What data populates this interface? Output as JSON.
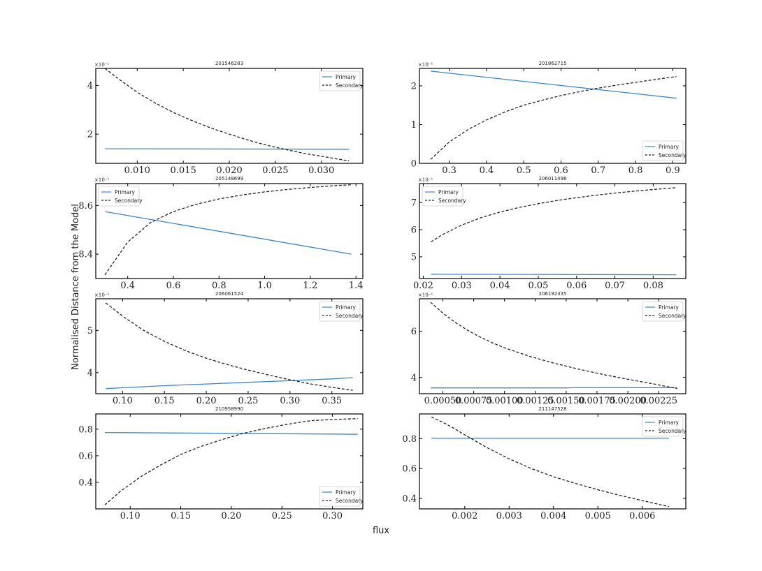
{
  "figure": {
    "xlabel": "flux",
    "ylabel": "Normalised Distance from the Model"
  },
  "colors": {
    "primary": "#3b87c4",
    "secondary": "#222222",
    "axes": "#000000"
  },
  "chart_data": [
    {
      "type": "line",
      "title": "201546283",
      "exponent": "×10⁻¹",
      "xlim": [
        0.0055,
        0.0345
      ],
      "ylim": [
        0.8,
        4.7
      ],
      "xticks": [
        0.01,
        0.015,
        0.02,
        0.025,
        0.03
      ],
      "xtick_labels": [
        "0.010",
        "0.015",
        "0.020",
        "0.025",
        "0.030"
      ],
      "yticks": [
        2,
        4
      ],
      "ytick_labels": [
        "2",
        "4"
      ],
      "legend": "top-right",
      "series": [
        {
          "name": "Primary",
          "style": "solid",
          "x": [
            0.0065,
            0.033
          ],
          "y": [
            1.4,
            1.38
          ]
        },
        {
          "name": "Secondary",
          "style": "dashed",
          "x": [
            0.0065,
            0.008,
            0.01,
            0.012,
            0.014,
            0.016,
            0.018,
            0.02,
            0.022,
            0.024,
            0.026,
            0.028,
            0.03,
            0.033
          ],
          "y": [
            4.7,
            4.26,
            3.72,
            3.27,
            2.88,
            2.55,
            2.25,
            2.0,
            1.76,
            1.55,
            1.38,
            1.22,
            1.09,
            0.9
          ]
        }
      ]
    },
    {
      "type": "line",
      "title": "201862715",
      "exponent": "×10⁻¹",
      "xlim": [
        0.22,
        0.935
      ],
      "ylim": [
        0,
        2.45
      ],
      "xticks": [
        0.3,
        0.4,
        0.5,
        0.6,
        0.7,
        0.8,
        0.9
      ],
      "xtick_labels": [
        "0.3",
        "0.4",
        "0.5",
        "0.6",
        "0.7",
        "0.8",
        "0.9"
      ],
      "yticks": [
        0,
        1,
        2
      ],
      "ytick_labels": [
        "0",
        "1",
        "2"
      ],
      "legend": "bottom-right",
      "series": [
        {
          "name": "Primary",
          "style": "solid",
          "x": [
            0.25,
            0.91
          ],
          "y": [
            2.38,
            1.68
          ]
        },
        {
          "name": "Secondary",
          "style": "dashed",
          "x": [
            0.25,
            0.3,
            0.35,
            0.4,
            0.45,
            0.5,
            0.55,
            0.6,
            0.65,
            0.7,
            0.75,
            0.8,
            0.85,
            0.91
          ],
          "y": [
            0.1,
            0.55,
            0.87,
            1.12,
            1.33,
            1.5,
            1.63,
            1.75,
            1.85,
            1.94,
            2.02,
            2.09,
            2.16,
            2.24
          ]
        }
      ]
    },
    {
      "type": "line",
      "title": "205148699",
      "exponent": "×10⁻¹",
      "xlim": [
        0.26,
        1.43
      ],
      "ylim": [
        8.3,
        8.69
      ],
      "xticks": [
        0.4,
        0.6,
        0.8,
        1.0,
        1.2,
        1.4
      ],
      "xtick_labels": [
        "0.4",
        "0.6",
        "0.8",
        "1.0",
        "1.2",
        "1.4"
      ],
      "yticks": [
        8.4,
        8.6
      ],
      "ytick_labels": [
        "8.4",
        "8.6"
      ],
      "legend": "top-left",
      "series": [
        {
          "name": "Primary",
          "style": "solid",
          "x": [
            0.3,
            1.38
          ],
          "y": [
            8.575,
            8.4
          ]
        },
        {
          "name": "Secondary",
          "style": "dashed",
          "x": [
            0.3,
            0.4,
            0.5,
            0.6,
            0.7,
            0.8,
            0.9,
            1.0,
            1.1,
            1.2,
            1.3,
            1.38
          ],
          "y": [
            8.315,
            8.45,
            8.53,
            8.575,
            8.605,
            8.627,
            8.643,
            8.656,
            8.666,
            8.674,
            8.681,
            8.685
          ]
        }
      ]
    },
    {
      "type": "line",
      "title": "206011496",
      "exponent": "×10⁻¹",
      "xlim": [
        0.019,
        0.0885
      ],
      "ylim": [
        4.2,
        7.7
      ],
      "xticks": [
        0.02,
        0.03,
        0.04,
        0.05,
        0.06,
        0.07,
        0.08
      ],
      "xtick_labels": [
        "0.02",
        "0.03",
        "0.04",
        "0.05",
        "0.06",
        "0.07",
        "0.08"
      ],
      "yticks": [
        5,
        6,
        7
      ],
      "ytick_labels": [
        "5",
        "6",
        "7"
      ],
      "legend": "top-left",
      "series": [
        {
          "name": "Primary",
          "style": "solid",
          "x": [
            0.022,
            0.086
          ],
          "y": [
            4.36,
            4.34
          ]
        },
        {
          "name": "Secondary",
          "style": "dashed",
          "x": [
            0.022,
            0.025,
            0.03,
            0.035,
            0.04,
            0.045,
            0.05,
            0.055,
            0.06,
            0.065,
            0.07,
            0.075,
            0.08,
            0.086
          ],
          "y": [
            5.55,
            5.82,
            6.17,
            6.44,
            6.65,
            6.82,
            6.96,
            7.08,
            7.18,
            7.27,
            7.35,
            7.42,
            7.48,
            7.55
          ]
        }
      ]
    },
    {
      "type": "line",
      "title": "206061524",
      "exponent": "×10⁻¹",
      "xlim": [
        0.068,
        0.387
      ],
      "ylim": [
        3.5,
        5.75
      ],
      "xticks": [
        0.1,
        0.15,
        0.2,
        0.25,
        0.3,
        0.35
      ],
      "xtick_labels": [
        "0.10",
        "0.15",
        "0.20",
        "0.25",
        "0.30",
        "0.35"
      ],
      "yticks": [
        4,
        5
      ],
      "ytick_labels": [
        "4",
        "5"
      ],
      "legend": "top-right",
      "series": [
        {
          "name": "Primary",
          "style": "solid",
          "x": [
            0.08,
            0.1,
            0.15,
            0.2,
            0.25,
            0.3,
            0.35,
            0.375
          ],
          "y": [
            3.62,
            3.64,
            3.69,
            3.73,
            3.77,
            3.81,
            3.85,
            3.88
          ]
        },
        {
          "name": "Secondary",
          "style": "dashed",
          "x": [
            0.08,
            0.1,
            0.125,
            0.15,
            0.175,
            0.2,
            0.225,
            0.25,
            0.275,
            0.3,
            0.325,
            0.35,
            0.375
          ],
          "y": [
            5.65,
            5.34,
            5.0,
            4.74,
            4.52,
            4.34,
            4.19,
            4.06,
            3.94,
            3.83,
            3.73,
            3.65,
            3.58
          ]
        }
      ]
    },
    {
      "type": "line",
      "title": "206192335",
      "exponent": "×10⁻¹",
      "xlim": [
        0.00031,
        0.00247
      ],
      "ylim": [
        3.3,
        7.4
      ],
      "xticks": [
        0.0005,
        0.00075,
        0.001,
        0.00125,
        0.0015,
        0.00175,
        0.002,
        0.00225
      ],
      "xtick_labels": [
        "0.00050",
        "0.00075",
        "0.00100",
        "0.00125",
        "0.00150",
        "0.00175",
        "0.00200",
        "0.00225"
      ],
      "yticks": [
        4,
        6
      ],
      "ytick_labels": [
        "4",
        "6"
      ],
      "legend": "top-right",
      "series": [
        {
          "name": "Primary",
          "style": "solid",
          "x": [
            0.0004,
            0.0015,
            0.00155,
            0.0024
          ],
          "y": [
            3.55,
            3.55,
            3.56,
            3.56
          ]
        },
        {
          "name": "Secondary",
          "style": "dashed",
          "x": [
            0.0004,
            0.0005,
            0.0006,
            0.0007,
            0.0008,
            0.0009,
            0.001,
            0.0012,
            0.0014,
            0.0016,
            0.0018,
            0.002,
            0.0022,
            0.0024
          ],
          "y": [
            7.25,
            6.78,
            6.38,
            6.04,
            5.75,
            5.5,
            5.28,
            4.92,
            4.62,
            4.36,
            4.13,
            3.92,
            3.73,
            3.52
          ]
        }
      ]
    },
    {
      "type": "line",
      "title": "210958990",
      "exponent": "",
      "xlim": [
        0.066,
        0.33
      ],
      "ylim": [
        0.2,
        0.915
      ],
      "xticks": [
        0.1,
        0.15,
        0.2,
        0.25,
        0.3
      ],
      "xtick_labels": [
        "0.10",
        "0.15",
        "0.20",
        "0.25",
        "0.30"
      ],
      "yticks": [
        0.4,
        0.6,
        0.8
      ],
      "ytick_labels": [
        "0.4",
        "0.6",
        "0.8"
      ],
      "legend": "bottom-right",
      "series": [
        {
          "name": "Primary",
          "style": "solid",
          "x": [
            0.075,
            0.325
          ],
          "y": [
            0.775,
            0.762
          ]
        },
        {
          "name": "Secondary",
          "style": "dashed",
          "x": [
            0.075,
            0.09,
            0.11,
            0.13,
            0.15,
            0.17,
            0.19,
            0.21,
            0.23,
            0.25,
            0.27,
            0.28,
            0.3,
            0.325
          ],
          "y": [
            0.23,
            0.33,
            0.44,
            0.53,
            0.61,
            0.67,
            0.72,
            0.765,
            0.8,
            0.83,
            0.855,
            0.865,
            0.873,
            0.88
          ]
        }
      ]
    },
    {
      "type": "line",
      "title": "211147528",
      "exponent": "",
      "xlim": [
        0.00098,
        0.00698
      ],
      "ylim": [
        0.33,
        0.965
      ],
      "xticks": [
        0.002,
        0.003,
        0.004,
        0.005,
        0.006
      ],
      "xtick_labels": [
        "0.002",
        "0.003",
        "0.004",
        "0.005",
        "0.006"
      ],
      "yticks": [
        0.4,
        0.6,
        0.8
      ],
      "ytick_labels": [
        "0.4",
        "0.6",
        "0.8"
      ],
      "legend": "top-right",
      "series": [
        {
          "name": "Primary",
          "style": "solid",
          "x": [
            0.00125,
            0.0066
          ],
          "y": [
            0.802,
            0.802
          ]
        },
        {
          "name": "Secondary",
          "style": "dashed",
          "x": [
            0.00125,
            0.0015,
            0.00175,
            0.002,
            0.0025,
            0.003,
            0.0035,
            0.004,
            0.0045,
            0.005,
            0.0055,
            0.006,
            0.0066
          ],
          "y": [
            0.945,
            0.91,
            0.87,
            0.825,
            0.74,
            0.665,
            0.6,
            0.545,
            0.5,
            0.458,
            0.42,
            0.385,
            0.345
          ]
        }
      ]
    }
  ]
}
